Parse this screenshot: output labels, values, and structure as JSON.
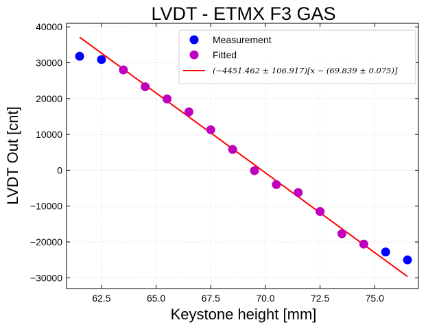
{
  "chart_data": {
    "type": "scatter",
    "title": "LVDT - ETMX F3 GAS",
    "xlabel": "Keystone height [mm]",
    "ylabel": "LVDT Out [cnt]",
    "xlim": [
      60.9,
      77.0
    ],
    "ylim": [
      -33000,
      41000
    ],
    "xticks": [
      62.5,
      65.0,
      67.5,
      70.0,
      72.5,
      75.0
    ],
    "xtick_labels": [
      "62.5",
      "65.0",
      "67.5",
      "70.0",
      "72.5",
      "75.0"
    ],
    "yticks": [
      -30000,
      -20000,
      -10000,
      0,
      10000,
      20000,
      30000,
      40000
    ],
    "ytick_labels": [
      "−30000",
      "−20000",
      "−10000",
      "0",
      "10000",
      "20000",
      "30000",
      "40000"
    ],
    "grid": true,
    "legend_position": "top-right",
    "series": [
      {
        "name": "Measurement",
        "kind": "scatter",
        "color": "#0000ff",
        "x": [
          61.5,
          62.5,
          75.5,
          76.5
        ],
        "y": [
          31800,
          30900,
          -22800,
          -25000
        ]
      },
      {
        "name": "Fitted",
        "kind": "scatter",
        "color": "#bf00bf",
        "x": [
          63.5,
          64.5,
          65.5,
          66.5,
          67.5,
          68.5,
          69.5,
          70.5,
          71.5,
          72.5,
          73.5,
          74.5
        ],
        "y": [
          28000,
          23300,
          19900,
          16300,
          11300,
          5800,
          -100,
          -4000,
          -6200,
          -11500,
          -17700,
          -20600
        ]
      },
      {
        "name": "$(-4451.462 \\pm 106.917)[x - (69.839 \\pm 0.075)]$",
        "display_name": "(−4451.462 ± 106.917)[x − (69.839 ± 0.075)]",
        "kind": "line",
        "color": "#ff0000",
        "slope": -4451.462,
        "x0": 69.839,
        "x": [
          61.5,
          76.5
        ],
        "y": [
          37121,
          -29651
        ]
      }
    ]
  }
}
